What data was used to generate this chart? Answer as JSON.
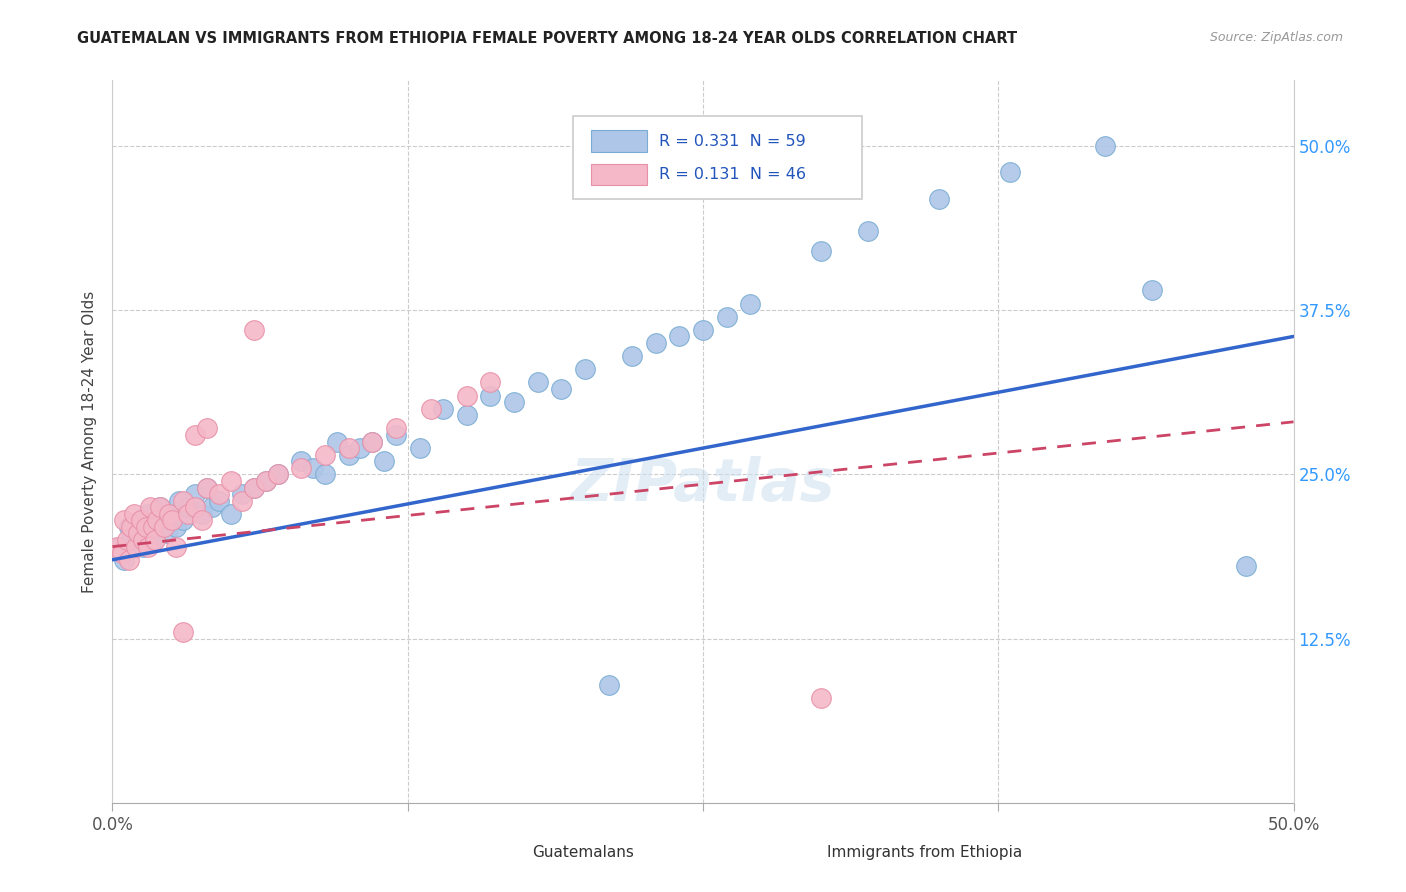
{
  "title": "GUATEMALAN VS IMMIGRANTS FROM ETHIOPIA FEMALE POVERTY AMONG 18-24 YEAR OLDS CORRELATION CHART",
  "source": "Source: ZipAtlas.com",
  "ylabel": "Female Poverty Among 18-24 Year Olds",
  "xlim": [
    0.0,
    0.5
  ],
  "ylim": [
    0.0,
    0.55
  ],
  "xtick_values": [
    0.0,
    0.125,
    0.25,
    0.375,
    0.5
  ],
  "xtick_labels": [
    "0.0%",
    "",
    "",
    "",
    "50.0%"
  ],
  "ytick_values": [
    0.125,
    0.25,
    0.375,
    0.5
  ],
  "right_ytick_labels": [
    "12.5%",
    "25.0%",
    "37.5%",
    "50.0%"
  ],
  "legend_text1": "R = 0.331  N = 59",
  "legend_text2": "R = 0.131  N = 46",
  "blue_scatter_color": "#aec6e8",
  "blue_scatter_edge": "#7aadd4",
  "pink_scatter_color": "#f4b8c8",
  "pink_scatter_edge": "#e890a8",
  "blue_line_color": "#3366cc",
  "pink_line_color": "#cc4466",
  "watermark": "ZIPatlas",
  "guat_x": [
    0.003,
    0.005,
    0.007,
    0.008,
    0.01,
    0.012,
    0.013,
    0.015,
    0.017,
    0.018,
    0.02,
    0.022,
    0.023,
    0.025,
    0.027,
    0.028,
    0.03,
    0.032,
    0.035,
    0.038,
    0.04,
    0.042,
    0.045,
    0.05,
    0.055,
    0.06,
    0.065,
    0.07,
    0.08,
    0.085,
    0.09,
    0.095,
    0.1,
    0.105,
    0.11,
    0.115,
    0.12,
    0.13,
    0.14,
    0.15,
    0.16,
    0.17,
    0.18,
    0.19,
    0.2,
    0.21,
    0.22,
    0.23,
    0.24,
    0.25,
    0.26,
    0.27,
    0.3,
    0.32,
    0.35,
    0.38,
    0.42,
    0.44,
    0.48
  ],
  "guat_y": [
    0.195,
    0.185,
    0.21,
    0.2,
    0.205,
    0.215,
    0.195,
    0.22,
    0.2,
    0.21,
    0.225,
    0.215,
    0.205,
    0.22,
    0.21,
    0.23,
    0.215,
    0.225,
    0.235,
    0.22,
    0.24,
    0.225,
    0.23,
    0.22,
    0.235,
    0.24,
    0.245,
    0.25,
    0.26,
    0.255,
    0.25,
    0.275,
    0.265,
    0.27,
    0.275,
    0.26,
    0.28,
    0.27,
    0.3,
    0.295,
    0.31,
    0.305,
    0.32,
    0.315,
    0.33,
    0.09,
    0.34,
    0.35,
    0.355,
    0.36,
    0.37,
    0.38,
    0.42,
    0.435,
    0.46,
    0.48,
    0.5,
    0.39,
    0.18
  ],
  "eth_x": [
    0.002,
    0.004,
    0.005,
    0.006,
    0.007,
    0.008,
    0.009,
    0.01,
    0.011,
    0.012,
    0.013,
    0.014,
    0.015,
    0.016,
    0.017,
    0.018,
    0.019,
    0.02,
    0.022,
    0.024,
    0.025,
    0.027,
    0.03,
    0.032,
    0.035,
    0.038,
    0.04,
    0.045,
    0.05,
    0.055,
    0.06,
    0.065,
    0.07,
    0.08,
    0.09,
    0.1,
    0.11,
    0.12,
    0.135,
    0.15,
    0.16,
    0.03,
    0.035,
    0.04,
    0.3,
    0.06
  ],
  "eth_y": [
    0.195,
    0.19,
    0.215,
    0.2,
    0.185,
    0.21,
    0.22,
    0.195,
    0.205,
    0.215,
    0.2,
    0.21,
    0.195,
    0.225,
    0.21,
    0.2,
    0.215,
    0.225,
    0.21,
    0.22,
    0.215,
    0.195,
    0.23,
    0.22,
    0.225,
    0.215,
    0.24,
    0.235,
    0.245,
    0.23,
    0.24,
    0.245,
    0.25,
    0.255,
    0.265,
    0.27,
    0.275,
    0.285,
    0.3,
    0.31,
    0.32,
    0.13,
    0.28,
    0.285,
    0.08,
    0.36
  ],
  "guat_line_x": [
    0.0,
    0.5
  ],
  "guat_line_y": [
    0.185,
    0.355
  ],
  "eth_line_x": [
    0.0,
    0.5
  ],
  "eth_line_y": [
    0.195,
    0.29
  ]
}
